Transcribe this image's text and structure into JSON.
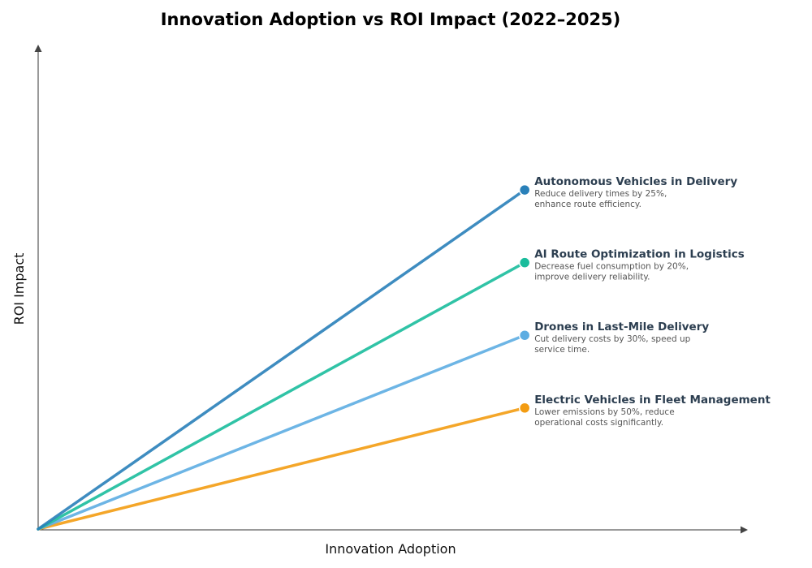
{
  "chart_data": {
    "type": "line",
    "title": "Innovation Adoption vs ROI Impact (2022–2025)",
    "xlabel": "Innovation Adoption",
    "ylabel": "ROI Impact",
    "xlim": [
      0,
      1
    ],
    "ylim": [
      0,
      1
    ],
    "grid": false,
    "tick_labels": false,
    "series": [
      {
        "name": "Autonomous Vehicles in Delivery",
        "description": [
          "Reduce delivery times by 25%,",
          "enhance route efficiency."
        ],
        "color": "#2980b9",
        "x": [
          0,
          0.7
        ],
        "y": [
          0,
          0.7
        ]
      },
      {
        "name": "AI Route Optimization in Logistics",
        "description": [
          "Decrease fuel consumption by 20%,",
          "improve delivery reliability."
        ],
        "color": "#1abc9c",
        "x": [
          0,
          0.7
        ],
        "y": [
          0,
          0.55
        ]
      },
      {
        "name": "Drones in Last-Mile Delivery",
        "description": [
          "Cut delivery costs by 30%, speed up",
          "service time."
        ],
        "color": "#5dade2",
        "x": [
          0,
          0.7
        ],
        "y": [
          0,
          0.4
        ]
      },
      {
        "name": "Electric Vehicles in Fleet Management",
        "description": [
          "Lower emissions by 50%, reduce",
          "operational costs significantly."
        ],
        "color": "#f39c12",
        "x": [
          0,
          0.7
        ],
        "y": [
          0,
          0.25
        ]
      }
    ]
  }
}
